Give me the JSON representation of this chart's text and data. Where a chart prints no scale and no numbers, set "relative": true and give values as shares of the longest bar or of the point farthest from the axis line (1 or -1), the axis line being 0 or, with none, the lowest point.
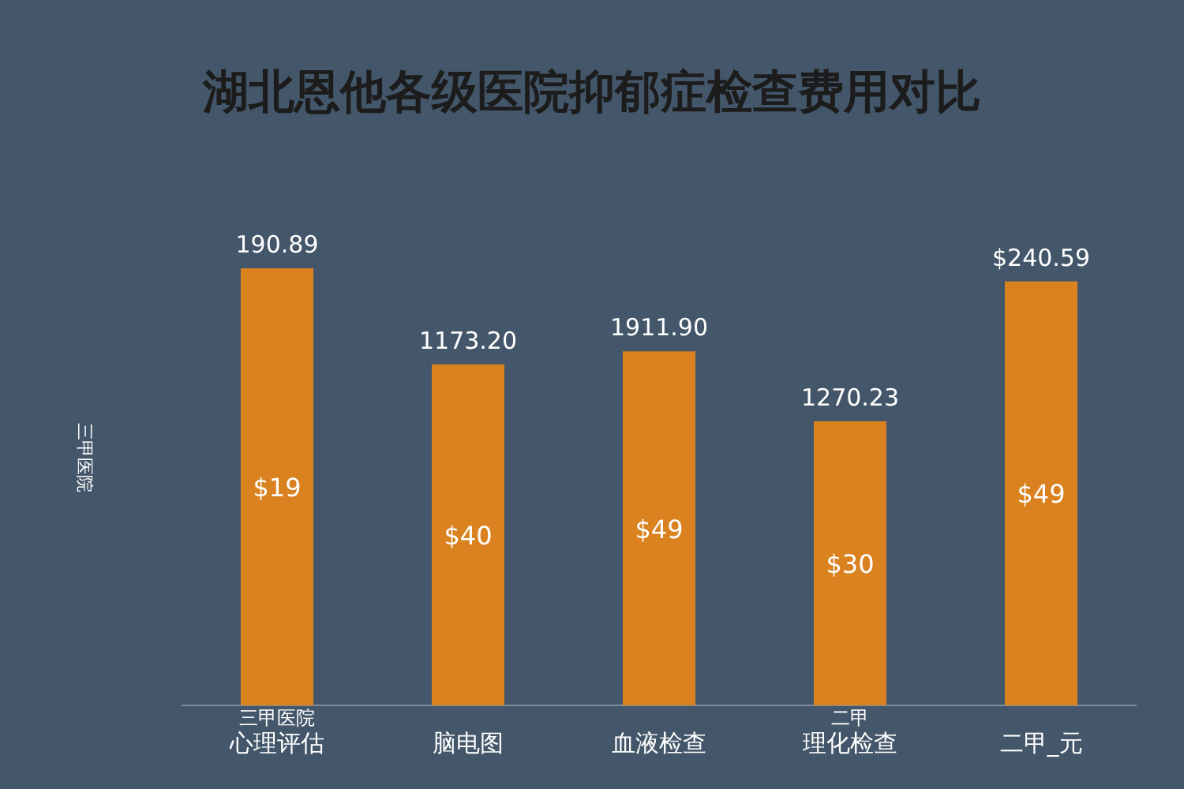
{
  "chart_data": {
    "type": "bar",
    "title": "湖北恩他各级医院抑郁症检查费用对比",
    "ylabel": "三甲医院",
    "relative": true,
    "categories": [
      "心理评估",
      "脑电图",
      "血液检查",
      "理化检查",
      "二甲_元"
    ],
    "values": [
      1,
      0.78,
      0.81,
      0.65,
      0.97
    ],
    "color": "#d9821f",
    "annotations": [
      "190.89",
      "1173.20",
      "1911.90",
      "1270.23",
      "$240.59",
      "$19",
      "$40",
      "$49",
      "$30",
      "$49",
      "三甲医院",
      "二甲"
    ]
  }
}
